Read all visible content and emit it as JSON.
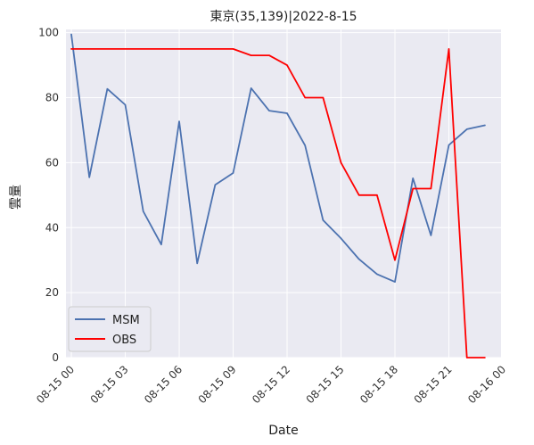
{
  "chart_data": {
    "type": "line",
    "title": "東京(35,139)|2022-8-15",
    "xlabel": "Date",
    "ylabel": "雲量",
    "ylim": [
      0,
      101
    ],
    "xlim": [
      -0.3,
      23.9
    ],
    "grid": true,
    "legend_position": "lower-left",
    "x_ticks": [
      0,
      3,
      6,
      9,
      12,
      15,
      18,
      21,
      24
    ],
    "x_tick_labels": [
      "08-15 00",
      "08-15 03",
      "08-15 06",
      "08-15 09",
      "08-15 12",
      "08-15 15",
      "08-15 18",
      "08-15 21",
      "08-16 00"
    ],
    "y_ticks": [
      0,
      20,
      40,
      60,
      80,
      100
    ],
    "y_tick_labels": [
      "0",
      "20",
      "40",
      "60",
      "80",
      "100"
    ],
    "x": [
      0,
      1,
      2,
      3,
      4,
      5,
      6,
      7,
      8,
      9,
      10,
      11,
      12,
      13,
      14,
      15,
      16,
      17,
      18,
      19,
      20,
      21,
      22,
      23
    ],
    "series": [
      {
        "name": "MSM",
        "color": "#4c72b0",
        "values": [
          99.5,
          55.5,
          82.7,
          77.8,
          45.0,
          34.8,
          72.7,
          29.0,
          53.2,
          56.8,
          82.9,
          76.0,
          75.2,
          65.3,
          42.3,
          36.7,
          30.3,
          25.7,
          23.3,
          55.2,
          37.6,
          65.4,
          70.3,
          71.5
        ]
      },
      {
        "name": "OBS",
        "color": "#ff0000",
        "values": [
          95,
          95,
          95,
          95,
          95,
          95,
          95,
          95,
          95,
          95,
          93,
          93,
          90,
          80,
          80,
          60,
          50,
          50,
          30,
          52,
          52,
          95,
          0,
          0
        ]
      }
    ]
  }
}
